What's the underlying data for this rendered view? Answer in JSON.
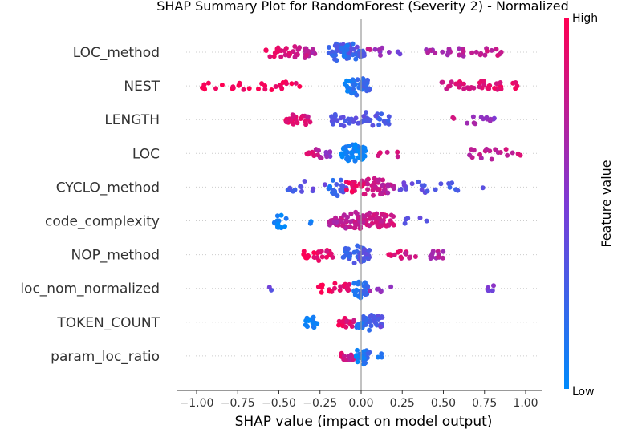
{
  "chart_data": {
    "type": "scatter",
    "title": "SHAP Summary Plot for RandomForest (Severity 2) - Normalized",
    "xlabel": "SHAP value (impact on model output)",
    "xlim": [
      -1.08,
      1.08
    ],
    "xticks": [
      "−1.00",
      "−0.75",
      "−0.50",
      "−0.25",
      "0.00",
      "0.25",
      "0.50",
      "0.75",
      "1.00"
    ],
    "xtick_values": [
      -1.0,
      -0.75,
      -0.5,
      -0.25,
      0.0,
      0.25,
      0.5,
      0.75,
      1.0
    ],
    "grid": false,
    "colorbar": {
      "label": "Feature value",
      "high_label": "High",
      "low_label": "Low",
      "low_color": "#008afb",
      "mid_color": "#7c3bd6",
      "high_color": "#ff0052"
    },
    "features": [
      {
        "name": "LOC_method",
        "clusters": [
          {
            "min": -0.58,
            "max": -0.28,
            "n": 45,
            "c0": 0.95,
            "c1": 0.7,
            "spread": 0.7
          },
          {
            "min": -0.22,
            "max": -0.02,
            "n": 35,
            "c0": 0.15,
            "c1": 0.45,
            "spread": 1.0
          },
          {
            "min": -0.12,
            "max": 0.02,
            "n": 30,
            "c0": 0.1,
            "c1": 0.3,
            "spread": 1.0
          },
          {
            "min": 0.03,
            "max": 0.24,
            "n": 10,
            "c0": 0.75,
            "c1": 0.4,
            "spread": 0.3
          },
          {
            "min": 0.39,
            "max": 0.87,
            "n": 30,
            "c0": 0.65,
            "c1": 0.8,
            "spread": 0.3
          }
        ]
      },
      {
        "name": "NEST",
        "clusters": [
          {
            "min": -0.97,
            "max": -0.36,
            "n": 30,
            "c0": 1.0,
            "c1": 0.95,
            "spread": 0.4
          },
          {
            "min": -0.1,
            "max": 0.05,
            "n": 45,
            "c0": 0.05,
            "c1": 0.25,
            "spread": 1.0
          },
          {
            "min": 0.49,
            "max": 0.98,
            "n": 40,
            "c0": 0.85,
            "c1": 0.92,
            "spread": 0.4
          }
        ]
      },
      {
        "name": "LENGTH",
        "clusters": [
          {
            "min": -0.46,
            "max": -0.3,
            "n": 25,
            "c0": 0.92,
            "c1": 0.8,
            "spread": 0.6
          },
          {
            "min": -0.2,
            "max": 0.18,
            "n": 45,
            "c0": 0.35,
            "c1": 0.3,
            "spread": 0.8
          },
          {
            "min": 0.53,
            "max": 0.83,
            "n": 14,
            "c0": 0.8,
            "c1": 0.55,
            "spread": 0.4
          }
        ]
      },
      {
        "name": "LOC",
        "clusters": [
          {
            "min": -0.33,
            "max": -0.18,
            "n": 20,
            "c0": 0.95,
            "c1": 0.5,
            "spread": 0.4
          },
          {
            "min": -0.12,
            "max": 0.03,
            "n": 55,
            "c0": 0.05,
            "c1": 0.05,
            "spread": 1.0
          },
          {
            "min": 0.08,
            "max": 0.25,
            "n": 6,
            "c0": 0.9,
            "c1": 0.8,
            "spread": 0.2
          },
          {
            "min": 0.62,
            "max": 0.98,
            "n": 18,
            "c0": 0.7,
            "c1": 0.8,
            "spread": 0.5
          }
        ]
      },
      {
        "name": "CYCLO_method",
        "clusters": [
          {
            "min": -0.46,
            "max": -0.22,
            "n": 12,
            "c0": 0.3,
            "c1": 0.4,
            "spread": 0.5
          },
          {
            "min": -0.2,
            "max": -0.09,
            "n": 20,
            "c0": 0.1,
            "c1": 0.4,
            "spread": 0.9
          },
          {
            "min": -0.09,
            "max": 0.2,
            "n": 60,
            "c0": 0.95,
            "c1": 0.7,
            "spread": 1.0
          },
          {
            "min": 0.22,
            "max": 0.6,
            "n": 20,
            "c0": 0.4,
            "c1": 0.3,
            "spread": 0.5
          },
          {
            "min": 0.72,
            "max": 0.76,
            "n": 1,
            "c0": 0.3,
            "c1": 0.3,
            "spread": 0.0
          }
        ]
      },
      {
        "name": "code_complexity",
        "clusters": [
          {
            "min": -0.53,
            "max": -0.45,
            "n": 15,
            "c0": 0.05,
            "c1": 0.05,
            "spread": 0.8
          },
          {
            "min": -0.33,
            "max": -0.3,
            "n": 2,
            "c0": 0.1,
            "c1": 0.1,
            "spread": 0.1
          },
          {
            "min": -0.2,
            "max": 0.2,
            "n": 90,
            "c0": 0.7,
            "c1": 0.85,
            "spread": 1.0
          },
          {
            "min": 0.25,
            "max": 0.43,
            "n": 5,
            "c0": 0.4,
            "c1": 0.4,
            "spread": 0.2
          }
        ]
      },
      {
        "name": "NOP_method",
        "clusters": [
          {
            "min": -0.35,
            "max": -0.17,
            "n": 25,
            "c0": 1.0,
            "c1": 0.85,
            "spread": 0.5
          },
          {
            "min": -0.12,
            "max": 0.05,
            "n": 40,
            "c0": 0.2,
            "c1": 0.35,
            "spread": 1.0
          },
          {
            "min": 0.15,
            "max": 0.38,
            "n": 14,
            "c0": 0.9,
            "c1": 0.75,
            "spread": 0.3
          },
          {
            "min": 0.42,
            "max": 0.5,
            "n": 12,
            "c0": 0.7,
            "c1": 0.7,
            "spread": 0.4
          }
        ]
      },
      {
        "name": "loc_nom_normalized",
        "clusters": [
          {
            "min": -0.57,
            "max": -0.54,
            "n": 2,
            "c0": 0.4,
            "c1": 0.4,
            "spread": 0.2
          },
          {
            "min": -0.26,
            "max": -0.07,
            "n": 20,
            "c0": 1.0,
            "c1": 0.85,
            "spread": 0.5
          },
          {
            "min": -0.05,
            "max": 0.04,
            "n": 30,
            "c0": 0.1,
            "c1": 0.2,
            "spread": 1.0
          },
          {
            "min": 0.05,
            "max": 0.19,
            "n": 6,
            "c0": 0.6,
            "c1": 0.5,
            "spread": 0.3
          },
          {
            "min": 0.76,
            "max": 0.86,
            "n": 5,
            "c0": 0.5,
            "c1": 0.5,
            "spread": 0.2
          }
        ]
      },
      {
        "name": "TOKEN_COUNT",
        "clusters": [
          {
            "min": -0.34,
            "max": -0.26,
            "n": 15,
            "c0": 0.05,
            "c1": 0.05,
            "spread": 0.6
          },
          {
            "min": -0.14,
            "max": -0.03,
            "n": 15,
            "c0": 0.95,
            "c1": 0.8,
            "spread": 0.4
          },
          {
            "min": -0.03,
            "max": 0.13,
            "n": 45,
            "c0": 0.1,
            "c1": 0.4,
            "spread": 1.0
          }
        ]
      },
      {
        "name": "param_loc_ratio",
        "clusters": [
          {
            "min": -0.12,
            "max": -0.03,
            "n": 18,
            "c0": 0.85,
            "c1": 0.7,
            "spread": 0.3
          },
          {
            "min": -0.03,
            "max": 0.05,
            "n": 30,
            "c0": 0.05,
            "c1": 0.2,
            "spread": 1.0
          },
          {
            "min": 0.1,
            "max": 0.14,
            "n": 3,
            "c0": 0.15,
            "c1": 0.15,
            "spread": 0.1
          }
        ]
      }
    ]
  }
}
